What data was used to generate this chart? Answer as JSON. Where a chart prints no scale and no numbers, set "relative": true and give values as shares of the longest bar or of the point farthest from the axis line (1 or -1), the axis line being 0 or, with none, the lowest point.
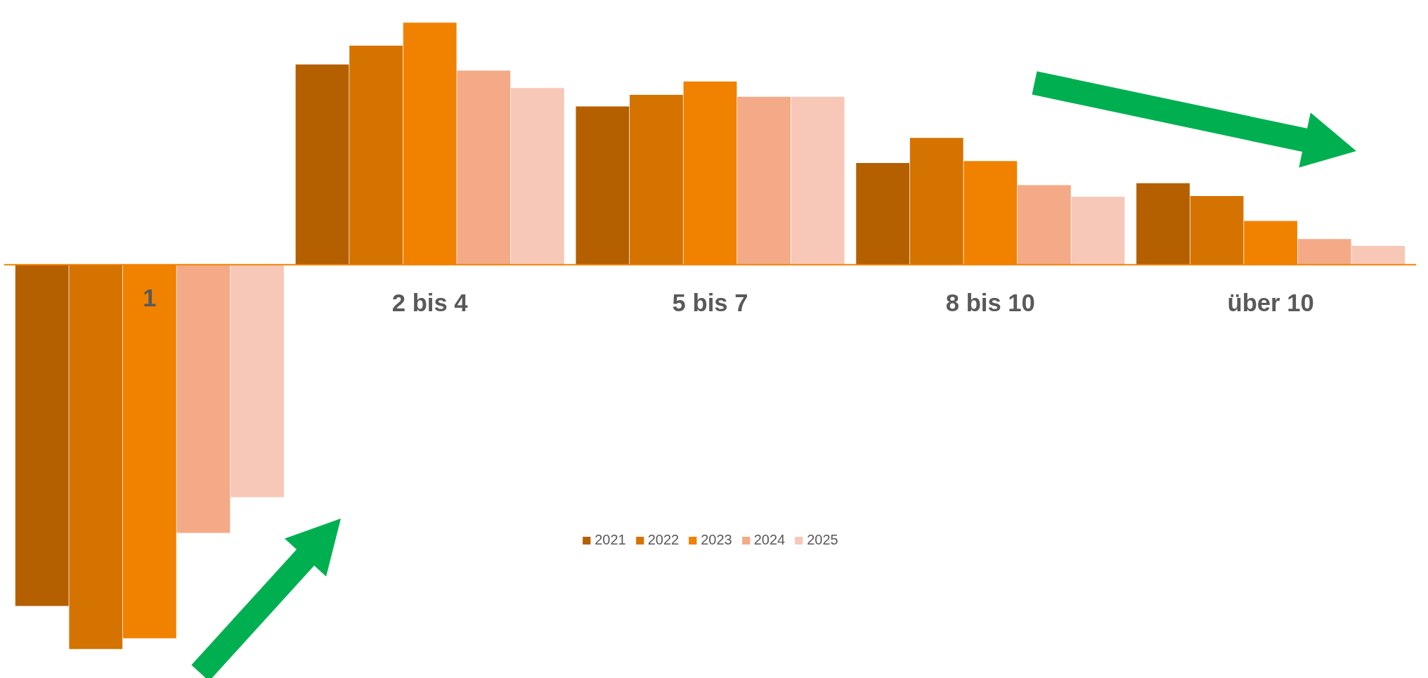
{
  "chart_data": {
    "type": "bar",
    "relative": true,
    "categories": [
      "1",
      "2 bis 4",
      "5 bis 7",
      "8 bis 10",
      "über 10"
    ],
    "series": [
      {
        "name": "2021",
        "color": "#b45f00",
        "values": [
          -0.888,
          0.521,
          0.412,
          0.265,
          0.212
        ]
      },
      {
        "name": "2022",
        "color": "#d47300",
        "values": [
          -1,
          0.57,
          0.442,
          0.33,
          0.179
        ]
      },
      {
        "name": "2023",
        "color": "#f08200",
        "values": [
          -0.972,
          0.63,
          0.477,
          0.27,
          0.114
        ]
      },
      {
        "name": "2024",
        "color": "#f4aa86",
        "values": [
          -0.698,
          0.505,
          0.437,
          0.207,
          0.067
        ]
      },
      {
        "name": "2025",
        "color": "#f7c8b7",
        "values": [
          -0.605,
          0.46,
          0.437,
          0.177,
          0.049
        ]
      }
    ],
    "legend": "bottom",
    "grid": false
  }
}
